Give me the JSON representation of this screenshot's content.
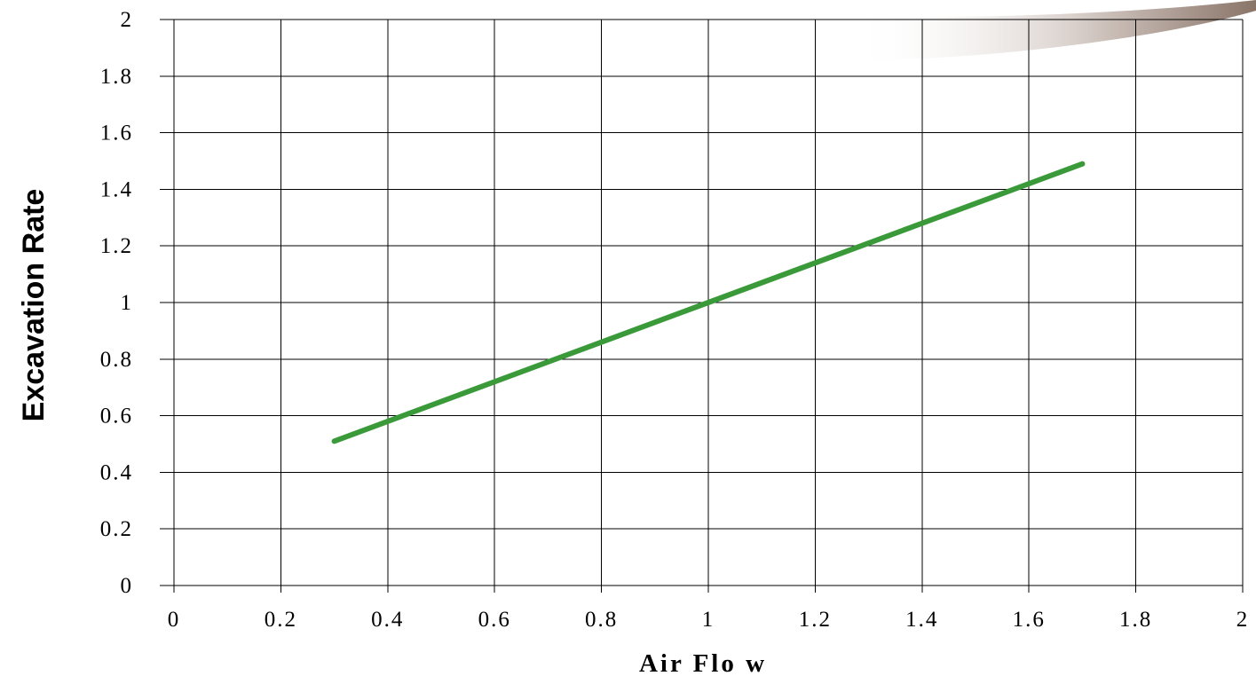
{
  "chart_data": {
    "type": "line",
    "xlabel": "Air Flo w",
    "ylabel": "Excavation Rate",
    "xlim": [
      0,
      2
    ],
    "ylim": [
      0,
      2
    ],
    "xticks": [
      "0",
      "0.2",
      "0.4",
      "0.6",
      "0.8",
      "1",
      "1.2",
      "1.4",
      "1.6",
      "1.8",
      "2"
    ],
    "yticks": [
      "0",
      "0.2",
      "0.4",
      "0.6",
      "0.8",
      "1",
      "1.2",
      "1.4",
      "1.6",
      "1.8",
      "2"
    ],
    "grid": true,
    "series": [
      {
        "x": [
          0.3,
          1.0,
          1.7
        ],
        "y": [
          0.51,
          1.0,
          1.49
        ],
        "color": "#3a9a3a"
      }
    ],
    "decoration_colors": [
      "#ffffff",
      "#8a7468"
    ]
  }
}
